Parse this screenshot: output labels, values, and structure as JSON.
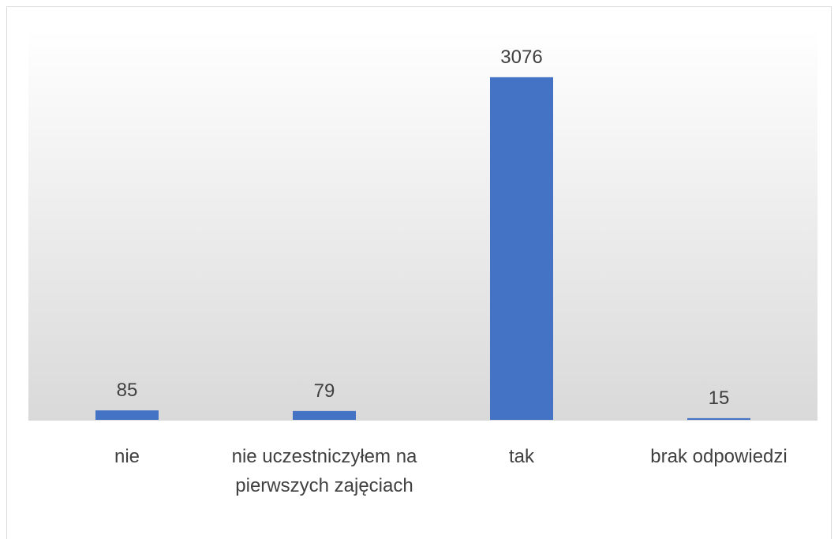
{
  "chart_data": {
    "type": "bar",
    "categories": [
      "nie",
      "nie uczestniczyłem na pierwszych zajęciach",
      "tak",
      "brak odpowiedzi"
    ],
    "values": [
      85,
      79,
      3076,
      15
    ],
    "color": "#4472c4",
    "ylim": [
      0,
      3500
    ],
    "data_labels": true
  }
}
